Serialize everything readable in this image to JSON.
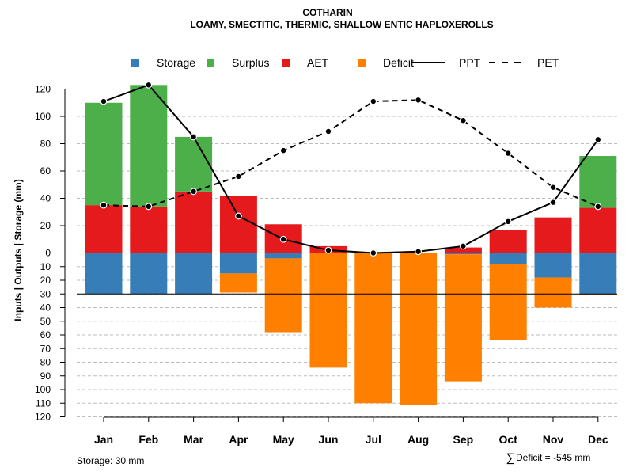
{
  "chart_data": {
    "type": "bar",
    "title": "COTHARIN",
    "subtitle": "LOAMY, SMECTITIC, THERMIC, SHALLOW ENTIC HAPLOXEROLLS",
    "ylabel": "Inputs | Outputs | Storage    (mm)",
    "xlabel": "",
    "categories": [
      "Jan",
      "Feb",
      "Mar",
      "Apr",
      "May",
      "Jun",
      "Jul",
      "Aug",
      "Sep",
      "Oct",
      "Nov",
      "Dec"
    ],
    "ylim_top": [
      0,
      130
    ],
    "ylim_bottom": [
      0,
      120
    ],
    "yticks_top": [
      0,
      20,
      40,
      60,
      80,
      100,
      120
    ],
    "yticks_bottom": [
      10,
      20,
      30,
      40,
      50,
      60,
      70,
      80,
      90,
      100,
      110,
      120
    ],
    "grid": true,
    "legend": {
      "placement": "top",
      "entries": [
        {
          "label": "Storage",
          "color": "#377EB8",
          "kind": "box"
        },
        {
          "label": "Surplus",
          "color": "#4DAF4A",
          "kind": "box"
        },
        {
          "label": "AET",
          "color": "#E41A1C",
          "kind": "box"
        },
        {
          "label": "Deficit",
          "color": "#FF7F00",
          "kind": "box"
        },
        {
          "label": "PPT",
          "color": "#000000",
          "kind": "solid"
        },
        {
          "label": "PET",
          "color": "#000000",
          "kind": "dashed"
        }
      ]
    },
    "series": [
      {
        "name": "AET",
        "color": "#E41A1C",
        "values": [
          35,
          34,
          45,
          42,
          21,
          5,
          0,
          0,
          4,
          17,
          26,
          33
        ]
      },
      {
        "name": "Surplus",
        "color": "#4DAF4A",
        "values": [
          75,
          89,
          40,
          0,
          0,
          0,
          0,
          0,
          0,
          0,
          0,
          38
        ]
      },
      {
        "name": "Storage",
        "color": "#377EB8",
        "values": [
          30,
          30,
          30,
          15,
          4,
          0,
          0,
          0,
          1,
          8,
          18,
          30
        ]
      },
      {
        "name": "Deficit",
        "color": "#FF7F00",
        "values": [
          0,
          0,
          0,
          14,
          54,
          84,
          110,
          111,
          93,
          56,
          22,
          1
        ]
      },
      {
        "name": "PPT",
        "color": "#000000",
        "line": "solid",
        "values": [
          111,
          123,
          85,
          27,
          10,
          2,
          0,
          1,
          5,
          23,
          37,
          83
        ]
      },
      {
        "name": "PET",
        "color": "#000000",
        "line": "dashed",
        "values": [
          35,
          34,
          45,
          56,
          75,
          89,
          111,
          112,
          97,
          73,
          48,
          34
        ]
      }
    ],
    "storage_line_value": 30,
    "annotations": {
      "storage_note": "Storage: 30 mm",
      "deficit_symbol": "∑",
      "deficit_note": "Deficit = -545 mm"
    }
  }
}
